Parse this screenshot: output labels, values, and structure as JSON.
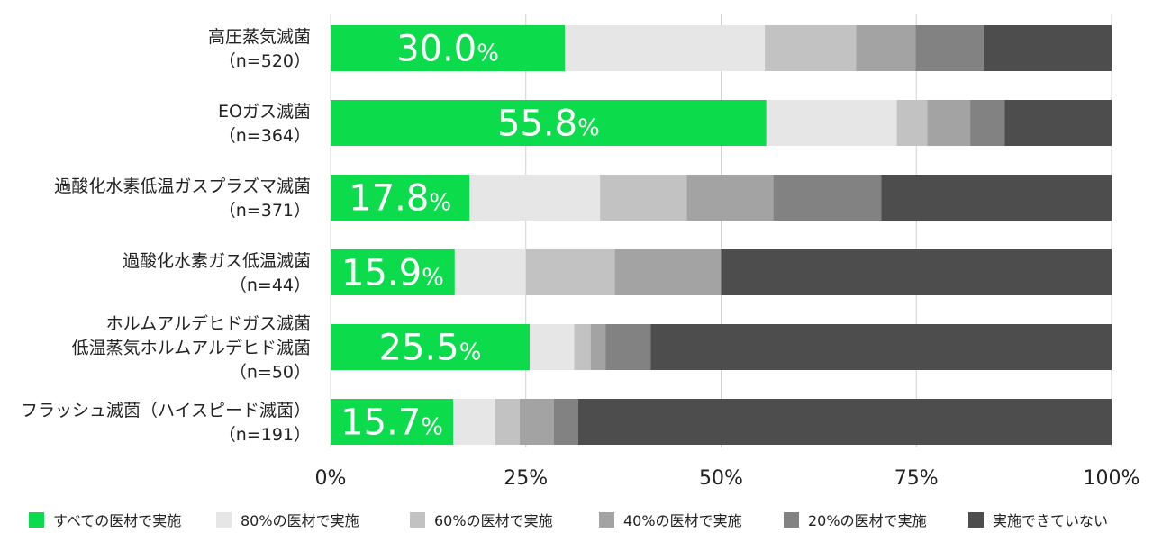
{
  "chart_data": {
    "type": "bar",
    "orientation": "horizontal",
    "stacked": true,
    "categories": [
      [
        "高圧蒸気滅菌",
        "（n=520）"
      ],
      [
        "EOガス滅菌",
        "（n=364）"
      ],
      [
        "過酸化水素低温ガスプラズマ滅菌",
        "（n=371）"
      ],
      [
        "過酸化水素ガス低温滅菌",
        "（n=44）"
      ],
      [
        "ホルムアルデヒドガス滅菌",
        "低温蒸気ホルムアルデヒド滅菌",
        "（n=50）"
      ],
      [
        "フラッシュ滅菌（ハイスピード滅菌）",
        "（n=191）"
      ]
    ],
    "series": [
      {
        "name": "すべての医材で実施",
        "color": "#0cdc4c",
        "values": [
          30.0,
          55.8,
          17.8,
          15.9,
          25.5,
          15.7
        ]
      },
      {
        "name": "80%の医材で実施",
        "color": "#e6e6e6",
        "values": [
          25.6,
          16.7,
          16.7,
          9.1,
          5.7,
          5.4
        ]
      },
      {
        "name": "60%の医材で実施",
        "color": "#c2c2c2",
        "values": [
          11.7,
          3.9,
          11.1,
          11.4,
          2.1,
          3.1
        ]
      },
      {
        "name": "40%の医材で実施",
        "color": "#a3a3a3",
        "values": [
          7.6,
          5.5,
          11.1,
          13.6,
          1.9,
          4.4
        ]
      },
      {
        "name": "20%の医材で実施",
        "color": "#828282",
        "values": [
          8.7,
          4.4,
          13.8,
          0.0,
          5.8,
          3.1
        ]
      },
      {
        "name": "実施できていない",
        "color": "#4d4d4d",
        "values": [
          16.4,
          13.7,
          29.5,
          50.0,
          59.0,
          68.3
        ]
      }
    ],
    "data_labels": [
      {
        "num": "30.0",
        "unit": "%"
      },
      {
        "num": "55.8",
        "unit": "%"
      },
      {
        "num": "17.8",
        "unit": "%"
      },
      {
        "num": "15.9",
        "unit": "%"
      },
      {
        "num": "25.5",
        "unit": "%"
      },
      {
        "num": "15.7",
        "unit": "%"
      }
    ],
    "xlim": [
      0,
      100
    ],
    "xticks": [
      0,
      25,
      50,
      75,
      100
    ],
    "xtick_labels": [
      "0%",
      "25%",
      "50%",
      "75%",
      "100%"
    ],
    "grid": true,
    "legend_position": "bottom"
  }
}
